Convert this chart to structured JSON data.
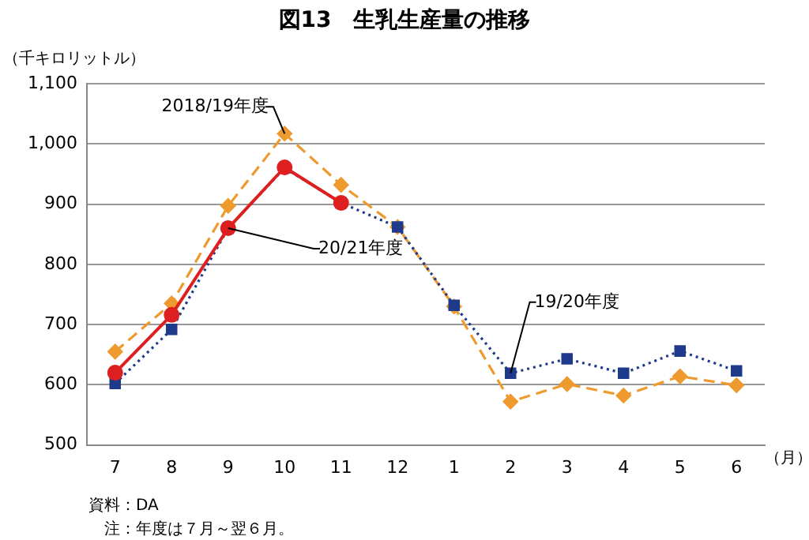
{
  "chart_data": {
    "type": "line",
    "title": "図13　生乳生産量の推移",
    "ylabel": "（千キロリットル）",
    "xlabel": "（月）",
    "categories": [
      "7",
      "8",
      "9",
      "10",
      "11",
      "12",
      "1",
      "2",
      "3",
      "4",
      "5",
      "6"
    ],
    "series": [
      {
        "color": "#ef9a2f",
        "marker": "diamond",
        "line_style": "dashed",
        "values": [
          655,
          735,
          897,
          1017,
          932,
          862,
          730,
          572,
          601,
          582,
          614,
          599
        ]
      },
      {
        "color": "#1f3a8a",
        "marker": "square",
        "line_style": "dotted",
        "values": [
          602,
          692,
          860,
          960,
          902,
          862,
          732,
          619,
          643,
          619,
          656,
          623
        ]
      },
      {
        "color": "#dd1f1f",
        "marker": "circle",
        "line_style": "solid",
        "values": [
          620,
          716,
          860,
          961,
          902,
          null,
          null,
          null,
          null,
          null,
          null,
          null
        ]
      }
    ],
    "ylim": [
      500,
      1100
    ],
    "yticks": [
      500,
      600,
      700,
      800,
      900,
      {
        "value": 1000,
        "label": "1,000"
      },
      {
        "value": 1100,
        "label": "1,100"
      }
    ],
    "grid": "y",
    "legend": false,
    "annotations": [
      {
        "text": "2018/19年度",
        "x": "10",
        "y": 1017
      },
      {
        "text": "20/21年度",
        "x": "9",
        "y": 860
      },
      {
        "text": "19/20年度",
        "x": "2",
        "y": 619
      },
      "資料：DA",
      "注：年度は７月～翌６月。"
    ]
  }
}
